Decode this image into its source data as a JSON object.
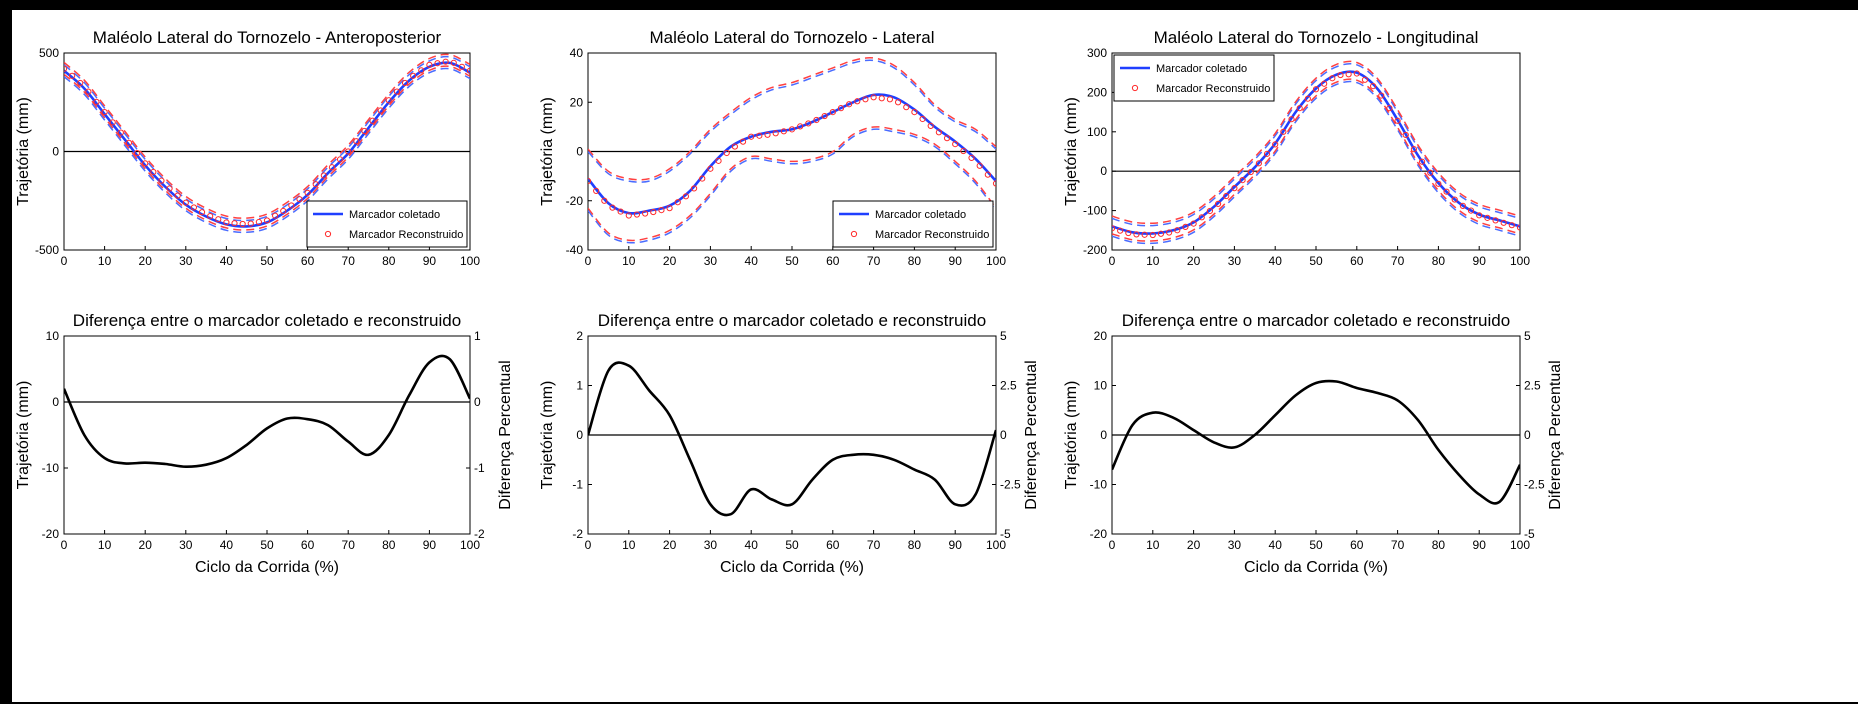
{
  "colors": {
    "collected": "#1f3fff",
    "reconstructed": "#ff2a2a",
    "ci_collected": "#4a6cff",
    "ci_reconstructed": "#ff4040",
    "diff": "#000000"
  },
  "legend": {
    "collected": "Marcador coletado",
    "reconstructed": "Marcador Reconstruido"
  },
  "chart_data": [
    {
      "id": "ap",
      "type": "line",
      "title": "Maléolo Lateral do Tornozelo - Anteroposterior",
      "xlabel": "",
      "ylabel": "Trajetória (mm)",
      "xlim": [
        0,
        100
      ],
      "ylim": [
        -500,
        500
      ],
      "yticks": [
        "-500",
        "0",
        "500"
      ],
      "xticks": [
        "0",
        "10",
        "20",
        "30",
        "40",
        "50",
        "60",
        "70",
        "80",
        "90",
        "100"
      ],
      "legend_position": "bottom-right",
      "grid": false,
      "x": [
        0,
        5,
        10,
        15,
        20,
        25,
        30,
        35,
        40,
        45,
        50,
        55,
        60,
        65,
        70,
        75,
        80,
        85,
        90,
        95,
        100
      ],
      "series": [
        {
          "name": "Marcador coletado",
          "values": [
            410,
            320,
            190,
            60,
            -70,
            -180,
            -270,
            -330,
            -370,
            -380,
            -360,
            -300,
            -220,
            -110,
            -10,
            120,
            250,
            360,
            430,
            450,
            400
          ]
        },
        {
          "name": "Marcador Reconstruido",
          "values": [
            420,
            330,
            200,
            70,
            -60,
            -170,
            -260,
            -320,
            -360,
            -370,
            -350,
            -290,
            -210,
            -100,
            0,
            130,
            260,
            370,
            440,
            460,
            410
          ]
        }
      ],
      "bands": {
        "upper": [
          440,
          350,
          220,
          90,
          -40,
          -150,
          -240,
          -300,
          -340,
          -350,
          -330,
          -270,
          -190,
          -80,
          20,
          150,
          280,
          390,
          460,
          480,
          430
        ],
        "lower": [
          380,
          290,
          160,
          30,
          -100,
          -210,
          -300,
          -360,
          -400,
          -410,
          -390,
          -330,
          -250,
          -140,
          -40,
          90,
          220,
          330,
          400,
          420,
          370
        ]
      }
    },
    {
      "id": "lat",
      "type": "line",
      "title": "Maléolo Lateral do Tornozelo - Lateral",
      "xlabel": "",
      "ylabel": "Trajetória (mm)",
      "xlim": [
        0,
        100
      ],
      "ylim": [
        -40,
        40
      ],
      "yticks": [
        "-40",
        "-20",
        "0",
        "20",
        "40"
      ],
      "xticks": [
        "0",
        "10",
        "20",
        "30",
        "40",
        "50",
        "60",
        "70",
        "80",
        "90",
        "100"
      ],
      "legend_position": "bottom-right",
      "grid": false,
      "x": [
        0,
        5,
        10,
        15,
        20,
        25,
        30,
        35,
        40,
        45,
        50,
        55,
        60,
        65,
        70,
        75,
        80,
        85,
        90,
        95,
        100
      ],
      "series": [
        {
          "name": "Marcador coletado",
          "values": [
            -11,
            -21,
            -25,
            -24,
            -22,
            -16,
            -6,
            2,
            6,
            8,
            9,
            12,
            16,
            20,
            23,
            22,
            17,
            10,
            4,
            -3,
            -12
          ]
        },
        {
          "name": "Marcador Reconstruido",
          "values": [
            -12,
            -22,
            -26,
            -25,
            -23,
            -17,
            -7,
            1,
            6,
            7,
            9,
            12,
            16,
            20,
            22,
            21,
            16,
            9,
            3,
            -4,
            -13
          ]
        }
      ],
      "bands": {
        "upper": [
          0,
          -9,
          -12,
          -12,
          -8,
          -1,
          8,
          15,
          21,
          25,
          27,
          30,
          33,
          36,
          37,
          34,
          27,
          18,
          12,
          8,
          1
        ],
        "lower": [
          -24,
          -34,
          -37,
          -36,
          -33,
          -27,
          -18,
          -8,
          -3,
          -4,
          -5,
          -4,
          -1,
          6,
          9,
          8,
          6,
          2,
          -5,
          -13,
          -24
        ]
      }
    },
    {
      "id": "long",
      "type": "line",
      "title": "Maléolo Lateral do Tornozelo - Longitudinal",
      "xlabel": "",
      "ylabel": "Trajetória (mm)",
      "xlim": [
        0,
        100
      ],
      "ylim": [
        -200,
        300
      ],
      "yticks": [
        "-200",
        "-100",
        "0",
        "100",
        "200",
        "300"
      ],
      "xticks": [
        "0",
        "10",
        "20",
        "30",
        "40",
        "50",
        "60",
        "70",
        "80",
        "90",
        "100"
      ],
      "legend_position": "top-left",
      "grid": false,
      "x": [
        0,
        5,
        10,
        15,
        20,
        25,
        30,
        35,
        40,
        45,
        50,
        55,
        60,
        65,
        70,
        75,
        80,
        85,
        90,
        95,
        100
      ],
      "series": [
        {
          "name": "Marcador coletado",
          "values": [
            -140,
            -155,
            -158,
            -150,
            -130,
            -90,
            -40,
            10,
            70,
            150,
            210,
            245,
            250,
            210,
            130,
            40,
            -30,
            -80,
            -110,
            -125,
            -140
          ]
        },
        {
          "name": "Marcador Reconstruido",
          "values": [
            -145,
            -160,
            -162,
            -154,
            -133,
            -93,
            -43,
            8,
            68,
            148,
            208,
            243,
            248,
            208,
            128,
            38,
            -32,
            -82,
            -112,
            -128,
            -143
          ]
        }
      ],
      "bands": {
        "upper": [
          -120,
          -135,
          -138,
          -130,
          -110,
          -70,
          -20,
          30,
          90,
          170,
          230,
          265,
          270,
          230,
          150,
          60,
          -10,
          -60,
          -90,
          -105,
          -120
        ],
        "lower": [
          -165,
          -180,
          -183,
          -175,
          -155,
          -115,
          -65,
          -15,
          45,
          125,
          185,
          220,
          225,
          185,
          105,
          15,
          -55,
          -105,
          -135,
          -150,
          -165
        ]
      }
    },
    {
      "id": "dap",
      "type": "line",
      "title": "Diferença entre o marcador coletado e reconstruido",
      "xlabel": "Ciclo da Corrida (%)",
      "ylabel": "Trajetória (mm)",
      "ylabel_right": "Diferença Percentual",
      "xlim": [
        0,
        100
      ],
      "ylim": [
        -20,
        10
      ],
      "yticks": [
        "-20",
        "-10",
        "0",
        "10"
      ],
      "yticks_right": [
        "-2",
        "-1",
        "0",
        "1"
      ],
      "xticks": [
        "0",
        "10",
        "20",
        "30",
        "40",
        "50",
        "60",
        "70",
        "80",
        "90",
        "100"
      ],
      "x": [
        0,
        5,
        10,
        15,
        20,
        25,
        30,
        35,
        40,
        45,
        50,
        55,
        60,
        65,
        70,
        75,
        80,
        85,
        90,
        95,
        100
      ],
      "series": [
        {
          "name": "",
          "values": [
            2,
            -5,
            -8.5,
            -9.3,
            -9.2,
            -9.4,
            -9.8,
            -9.5,
            -8.5,
            -6.5,
            -4,
            -2.5,
            -2.6,
            -3.5,
            -6,
            -8,
            -5,
            1,
            6,
            6.5,
            0.5
          ]
        }
      ]
    },
    {
      "id": "dlat",
      "type": "line",
      "title": "Diferença entre o marcador coletado e reconstruido",
      "xlabel": "Ciclo da Corrida (%)",
      "ylabel": "Trajetória (mm)",
      "ylabel_right": "Diferença Percentual",
      "xlim": [
        0,
        100
      ],
      "ylim": [
        -2,
        2
      ],
      "yticks": [
        "-2",
        "-1",
        "0",
        "1",
        "2"
      ],
      "yticks_right": [
        "-5",
        "-2.5",
        "0",
        "2.5",
        "5"
      ],
      "xticks": [
        "0",
        "10",
        "20",
        "30",
        "40",
        "50",
        "60",
        "70",
        "80",
        "90",
        "100"
      ],
      "x": [
        0,
        5,
        10,
        15,
        20,
        25,
        30,
        35,
        40,
        45,
        50,
        55,
        60,
        65,
        70,
        75,
        80,
        85,
        90,
        95,
        100
      ],
      "series": [
        {
          "name": "",
          "values": [
            0,
            1.3,
            1.4,
            0.9,
            0.4,
            -0.5,
            -1.4,
            -1.6,
            -1.1,
            -1.3,
            -1.4,
            -0.9,
            -0.5,
            -0.4,
            -0.4,
            -0.5,
            -0.7,
            -0.9,
            -1.4,
            -1.2,
            0.1
          ]
        }
      ]
    },
    {
      "id": "dlong",
      "type": "line",
      "title": "Diferença entre o marcador coletado e reconstruido",
      "xlabel": "Ciclo da Corrida (%)",
      "ylabel": "Trajetória (mm)",
      "ylabel_right": "Diferença Percentual",
      "xlim": [
        0,
        100
      ],
      "ylim": [
        -20,
        20
      ],
      "yticks": [
        "-20",
        "-10",
        "0",
        "10",
        "20"
      ],
      "yticks_right": [
        "-5",
        "-2.5",
        "0",
        "2.5",
        "5"
      ],
      "xticks": [
        "0",
        "10",
        "20",
        "30",
        "40",
        "50",
        "60",
        "70",
        "80",
        "90",
        "100"
      ],
      "x": [
        0,
        5,
        10,
        15,
        20,
        25,
        30,
        35,
        40,
        45,
        50,
        55,
        60,
        65,
        70,
        75,
        80,
        85,
        90,
        95,
        100
      ],
      "series": [
        {
          "name": "",
          "values": [
            -7,
            2,
            4.5,
            3.5,
            1,
            -1.5,
            -2.5,
            0,
            4,
            8,
            10.5,
            10.8,
            9.5,
            8.5,
            7,
            3,
            -3,
            -8,
            -12,
            -13.5,
            -6
          ]
        }
      ]
    }
  ]
}
